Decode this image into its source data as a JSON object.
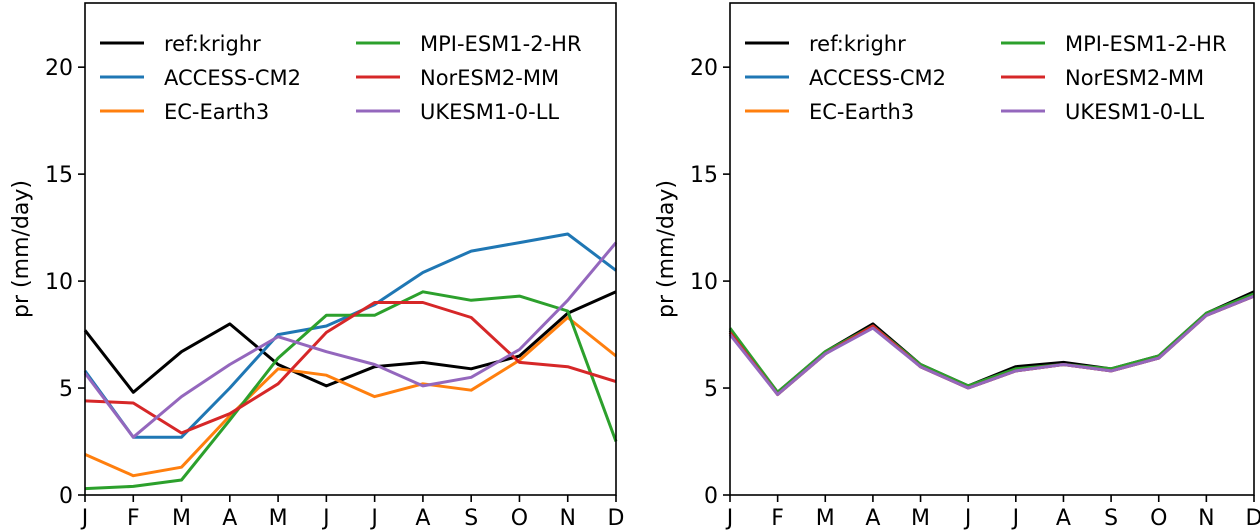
{
  "chart_data": [
    {
      "type": "line",
      "ylabel": "pr (mm/day)",
      "xlabel": "",
      "categories": [
        "J",
        "F",
        "M",
        "A",
        "M",
        "J",
        "J",
        "A",
        "S",
        "O",
        "N",
        "D"
      ],
      "ylim": [
        0,
        23
      ],
      "yticks": [
        0,
        5,
        10,
        15,
        20
      ],
      "legend_position": "upper-left, two columns",
      "grid": false,
      "series": [
        {
          "name": "ref:krighr",
          "color": "#000000",
          "values": [
            7.7,
            4.8,
            6.7,
            8.0,
            6.1,
            5.1,
            6.0,
            6.2,
            5.9,
            6.5,
            8.5,
            9.5
          ]
        },
        {
          "name": "ACCESS-CM2",
          "color": "#1f77b4",
          "values": [
            5.8,
            2.7,
            2.7,
            5.0,
            7.5,
            7.9,
            8.9,
            10.4,
            11.4,
            11.8,
            12.2,
            10.5
          ]
        },
        {
          "name": "EC-Earth3",
          "color": "#ff7f0e",
          "values": [
            1.9,
            0.9,
            1.3,
            3.7,
            5.9,
            5.6,
            4.6,
            5.2,
            4.9,
            6.3,
            8.3,
            6.5
          ]
        },
        {
          "name": "MPI-ESM1-2-HR",
          "color": "#2ca02c",
          "values": [
            0.3,
            0.4,
            0.7,
            3.5,
            6.4,
            8.4,
            8.4,
            9.5,
            9.1,
            9.3,
            8.6,
            2.5
          ]
        },
        {
          "name": "NorESM2-MM",
          "color": "#d62728",
          "values": [
            4.4,
            4.3,
            2.9,
            3.8,
            5.2,
            7.6,
            9.0,
            9.0,
            8.3,
            6.2,
            6.0,
            5.3
          ]
        },
        {
          "name": "UKESM1-0-LL",
          "color": "#9467bd",
          "values": [
            5.7,
            2.7,
            4.6,
            6.1,
            7.4,
            6.7,
            6.1,
            5.1,
            5.5,
            6.8,
            9.1,
            11.8
          ]
        }
      ]
    },
    {
      "type": "line",
      "ylabel": "pr (mm/day)",
      "xlabel": "",
      "categories": [
        "J",
        "F",
        "M",
        "A",
        "M",
        "J",
        "J",
        "A",
        "S",
        "O",
        "N",
        "D"
      ],
      "ylim": [
        0,
        23
      ],
      "yticks": [
        0,
        5,
        10,
        15,
        20
      ],
      "legend_position": "upper-left, two columns",
      "grid": false,
      "series": [
        {
          "name": "ref:krighr",
          "color": "#000000",
          "values": [
            7.7,
            4.8,
            6.7,
            8.0,
            6.1,
            5.1,
            6.0,
            6.2,
            5.9,
            6.5,
            8.5,
            9.5
          ]
        },
        {
          "name": "ACCESS-CM2",
          "color": "#1f77b4",
          "values": [
            7.6,
            4.7,
            6.6,
            7.9,
            6.0,
            5.0,
            5.8,
            6.1,
            5.8,
            6.4,
            8.4,
            9.3
          ]
        },
        {
          "name": "EC-Earth3",
          "color": "#ff7f0e",
          "values": [
            7.6,
            4.7,
            6.6,
            7.9,
            6.0,
            5.0,
            5.8,
            6.1,
            5.8,
            6.4,
            8.4,
            9.3
          ]
        },
        {
          "name": "MPI-ESM1-2-HR",
          "color": "#2ca02c",
          "values": [
            7.8,
            4.8,
            6.7,
            7.9,
            6.1,
            5.1,
            5.9,
            6.1,
            5.9,
            6.5,
            8.5,
            9.4
          ]
        },
        {
          "name": "NorESM2-MM",
          "color": "#d62728",
          "values": [
            7.6,
            4.7,
            6.6,
            7.9,
            6.0,
            5.0,
            5.8,
            6.1,
            5.8,
            6.4,
            8.4,
            9.3
          ]
        },
        {
          "name": "UKESM1-0-LL",
          "color": "#9467bd",
          "values": [
            7.5,
            4.7,
            6.6,
            7.8,
            6.0,
            5.0,
            5.8,
            6.1,
            5.8,
            6.4,
            8.4,
            9.3
          ]
        }
      ]
    }
  ]
}
